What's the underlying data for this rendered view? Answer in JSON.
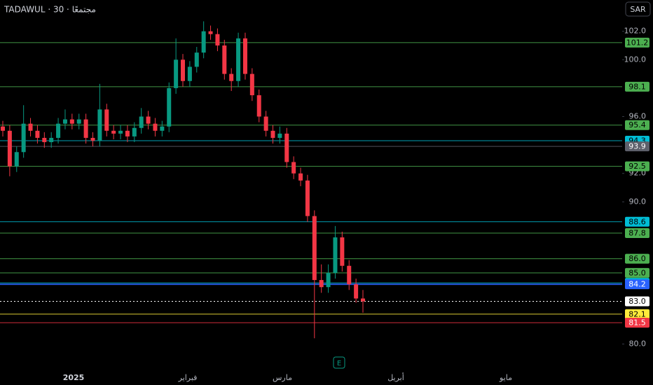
{
  "chart_data": {
    "type": "candlestick",
    "title": "TADAWUL · 30 · مجتمعًا",
    "currency": "SAR",
    "event_marker": "E",
    "time_labels": [
      "2025",
      "فبراير",
      "مارس",
      "أبريل",
      "مايو"
    ],
    "ylim": [
      78.1,
      104.2
    ],
    "yticks": [
      {
        "value": 80,
        "label": "80.0"
      },
      {
        "value": 90,
        "label": "90.0"
      },
      {
        "value": 92,
        "label": "92.0"
      },
      {
        "value": 96,
        "label": "96.0"
      },
      {
        "value": 100,
        "label": "100.0"
      },
      {
        "value": 102,
        "label": "102.0"
      }
    ],
    "up_color": "#089981",
    "down_color": "#f23645",
    "open": [
      95.3,
      95.0,
      92.5,
      93.5,
      95.5,
      95.0,
      94.5,
      94.2,
      94.5,
      95.5,
      95.8,
      95.5,
      95.8,
      94.5,
      94.3,
      96.5,
      95.0,
      94.8,
      95.0,
      94.6,
      95.2,
      96.0,
      95.5,
      95.0,
      95.3,
      98.0,
      100.0,
      98.5,
      99.5,
      100.5,
      102.0,
      101.8,
      101.0,
      99.0,
      98.5,
      101.5,
      99.0,
      97.5,
      96.0,
      95.0,
      94.5,
      94.8,
      92.8,
      92.0,
      91.5,
      89.0,
      84.5,
      84.0,
      85.0,
      87.5,
      85.5,
      84.2,
      83.2
    ],
    "high": [
      95.7,
      95.4,
      93.9,
      96.8,
      95.9,
      95.4,
      94.9,
      94.9,
      95.9,
      96.5,
      96.2,
      96.2,
      96.2,
      94.9,
      98.3,
      96.9,
      95.4,
      95.4,
      95.4,
      95.6,
      96.6,
      96.4,
      95.9,
      95.7,
      98.4,
      101.5,
      100.4,
      99.9,
      100.9,
      102.7,
      102.4,
      102.2,
      101.4,
      99.4,
      101.9,
      101.9,
      99.4,
      97.9,
      96.4,
      95.4,
      95.3,
      95.2,
      93.2,
      92.4,
      91.9,
      89.4,
      85.6,
      85.6,
      88.3,
      87.9,
      85.9,
      84.6,
      83.8
    ],
    "low": [
      94.6,
      91.8,
      92.1,
      93.1,
      94.6,
      94.1,
      93.8,
      93.8,
      94.1,
      95.1,
      95.1,
      95.1,
      94.1,
      93.9,
      93.9,
      94.6,
      94.4,
      94.4,
      94.2,
      94.2,
      94.8,
      95.1,
      94.6,
      94.6,
      94.9,
      97.6,
      98.1,
      98.1,
      99.1,
      100.1,
      101.4,
      100.6,
      98.6,
      97.8,
      98.1,
      98.6,
      97.1,
      95.6,
      94.6,
      94.1,
      94.1,
      92.4,
      91.6,
      91.1,
      88.6,
      80.4,
      83.6,
      83.6,
      84.6,
      85.1,
      83.8,
      82.9,
      82.2
    ],
    "close": [
      95.0,
      92.5,
      93.5,
      95.5,
      95.0,
      94.5,
      94.2,
      94.5,
      95.5,
      95.8,
      95.5,
      95.8,
      94.5,
      94.3,
      96.5,
      95.0,
      94.8,
      95.0,
      94.6,
      95.2,
      96.0,
      95.5,
      95.0,
      95.3,
      98.0,
      100.0,
      98.5,
      99.5,
      100.5,
      102.0,
      101.8,
      101.0,
      99.0,
      98.5,
      101.5,
      99.0,
      97.5,
      96.0,
      95.0,
      94.5,
      94.8,
      92.8,
      92.0,
      91.5,
      89.0,
      84.5,
      84.0,
      85.0,
      87.5,
      85.5,
      84.2,
      83.2,
      83.0
    ],
    "levels": [
      {
        "value": 101.2,
        "color": "#4caf50"
      },
      {
        "value": 98.1,
        "color": "#4caf50"
      },
      {
        "value": 95.4,
        "color": "#4caf50"
      },
      {
        "value": 94.3,
        "color": "#00bcd4"
      },
      {
        "value": 93.9,
        "color": "#5d606b"
      },
      {
        "value": 92.5,
        "color": "#4caf50"
      },
      {
        "value": 88.6,
        "color": "#00bcd4"
      },
      {
        "value": 87.8,
        "color": "#4caf50"
      },
      {
        "value": {
          "value": 86,
          "label": "86.0"
        },
        "color": "#4caf50"
      },
      {
        "value": {
          "value": 85,
          "label": "85.0"
        },
        "color": "#4caf50"
      },
      {
        "value": 84.3,
        "color": "#00bcd4"
      },
      {
        "value": 84.2,
        "color": "#2962ff"
      },
      {
        "value": {
          "value": 83,
          "label": "83.0"
        },
        "color": "#ffffff",
        "dotted": true
      },
      {
        "value": 82.1,
        "color": "#ffeb3b"
      },
      {
        "value": 81.5,
        "color": "#f23645"
      }
    ]
  }
}
